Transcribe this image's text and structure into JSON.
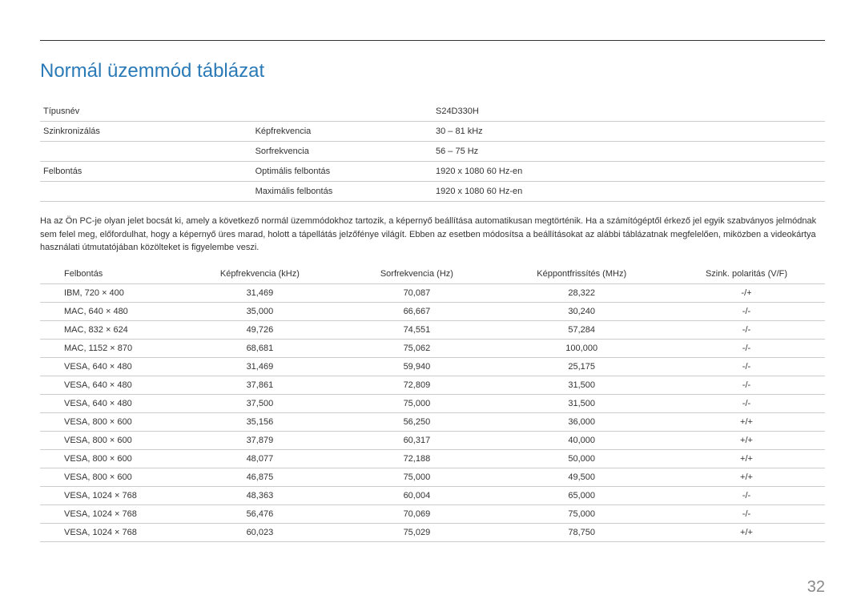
{
  "title": "Normál üzemmód táblázat",
  "spec": {
    "rows": [
      {
        "c1": "Típusnév",
        "c2": "",
        "c3": "S24D330H"
      },
      {
        "c1": "Szinkronizálás",
        "c2": "Képfrekvencia",
        "c3": "30 – 81 kHz"
      },
      {
        "c1": "",
        "c2": "Sorfrekvencia",
        "c3": "56 – 75 Hz"
      },
      {
        "c1": "Felbontás",
        "c2": "Optimális felbontás",
        "c3": "1920 x 1080 60 Hz-en"
      },
      {
        "c1": "",
        "c2": "Maximális felbontás",
        "c3": "1920 x 1080 60 Hz-en"
      }
    ]
  },
  "paragraph": "Ha az Ön PC-je olyan jelet bocsát ki, amely a következő normál üzemmódokhoz tartozik, a képernyő beállítása automatikusan megtörténik. Ha a számítógéptől érkező jel egyik szabványos jelmódnak sem felel meg, előfordulhat, hogy a képernyő üres marad, holott a tápellátás jelzőfénye világít. Ebben az esetben módosítsa a beállításokat az alábbi táblázatnak megfelelően, miközben a videokártya használati útmutatójában közölteket is figyelembe veszi.",
  "mode": {
    "headers": [
      "Felbontás",
      "Képfrekvencia (kHz)",
      "Sorfrekvencia (Hz)",
      "Képpontfrissítés (MHz)",
      "Szink. polaritás (V/F)"
    ],
    "rows": [
      [
        "IBM, 720 × 400",
        "31,469",
        "70,087",
        "28,322",
        "-/+"
      ],
      [
        "MAC, 640 × 480",
        "35,000",
        "66,667",
        "30,240",
        "-/-"
      ],
      [
        "MAC, 832 × 624",
        "49,726",
        "74,551",
        "57,284",
        "-/-"
      ],
      [
        "MAC, 1152 × 870",
        "68,681",
        "75,062",
        "100,000",
        "-/-"
      ],
      [
        "VESA, 640 × 480",
        "31,469",
        "59,940",
        "25,175",
        "-/-"
      ],
      [
        "VESA, 640 × 480",
        "37,861",
        "72,809",
        "31,500",
        "-/-"
      ],
      [
        "VESA, 640 × 480",
        "37,500",
        "75,000",
        "31,500",
        "-/-"
      ],
      [
        "VESA, 800 × 600",
        "35,156",
        "56,250",
        "36,000",
        "+/+"
      ],
      [
        "VESA, 800 × 600",
        "37,879",
        "60,317",
        "40,000",
        "+/+"
      ],
      [
        "VESA, 800 × 600",
        "48,077",
        "72,188",
        "50,000",
        "+/+"
      ],
      [
        "VESA, 800 × 600",
        "46,875",
        "75,000",
        "49,500",
        "+/+"
      ],
      [
        "VESA, 1024 × 768",
        "48,363",
        "60,004",
        "65,000",
        "-/-"
      ],
      [
        "VESA, 1024 × 768",
        "56,476",
        "70,069",
        "75,000",
        "-/-"
      ],
      [
        "VESA, 1024 × 768",
        "60,023",
        "75,029",
        "78,750",
        "+/+"
      ]
    ]
  },
  "page_number": "32",
  "colors": {
    "title": "#2a7ab8",
    "text": "#333333",
    "rule": "#cccccc",
    "page_num": "#888888",
    "background": "#ffffff"
  },
  "widths": {
    "c1_pct": 27,
    "c2_pct": 23,
    "c3_pct": 50
  },
  "mode_col_widths_pct": [
    18,
    20,
    20,
    22,
    20
  ]
}
